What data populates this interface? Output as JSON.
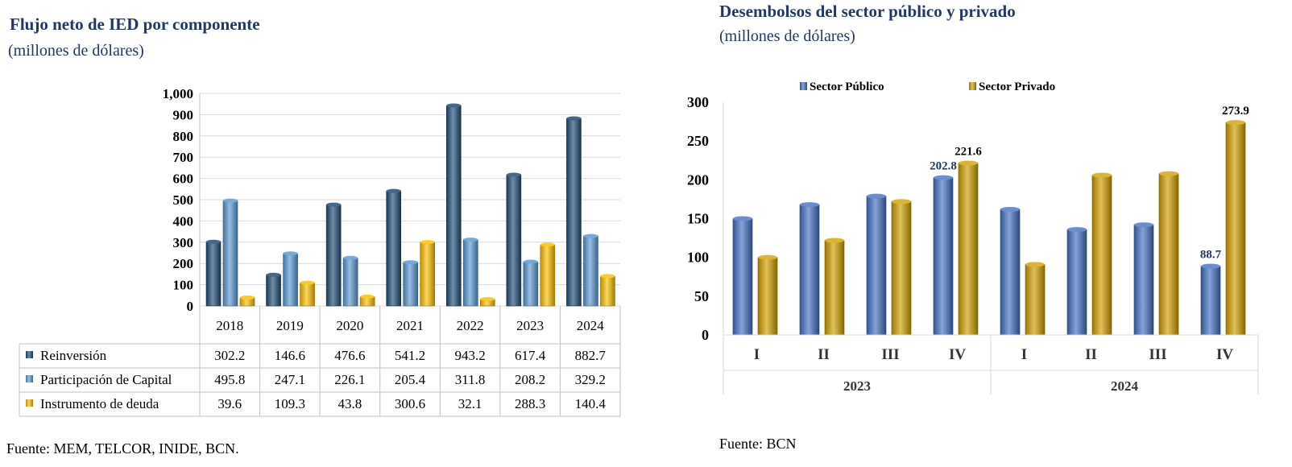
{
  "chart_data": [
    {
      "type": "bar",
      "title": "Flujo neto de IED por componente",
      "subtitle": "(millones de dólares)",
      "source": "Fuente: MEM, TELCOR, INIDE, BCN.",
      "categories": [
        "2018",
        "2019",
        "2020",
        "2021",
        "2022",
        "2023",
        "2024"
      ],
      "series": [
        {
          "name": "Reinversión",
          "color": "#1f4e79",
          "values": [
            302.2,
            146.6,
            476.6,
            541.2,
            943.2,
            617.4,
            882.7
          ]
        },
        {
          "name": "Participación de Capital",
          "color": "#5b9bd5",
          "values": [
            495.8,
            247.1,
            226.1,
            205.4,
            311.8,
            208.2,
            329.2
          ]
        },
        {
          "name": "Instrumento de deuda",
          "color": "#ffc000",
          "values": [
            39.6,
            109.3,
            43.8,
            300.6,
            32.1,
            288.3,
            140.4
          ]
        }
      ],
      "ylim": [
        0,
        1000
      ],
      "yticks": [
        "0",
        "100",
        "200",
        "300",
        "400",
        "500",
        "600",
        "700",
        "800",
        "900",
        "1,000"
      ],
      "grid": true,
      "legend": "data-table"
    },
    {
      "type": "bar",
      "title": "Desembolsos del sector público y privado",
      "subtitle": "(millones de dólares)",
      "source": "Fuente: BCN",
      "categories": [
        "I",
        "II",
        "III",
        "IV",
        "I",
        "II",
        "III",
        "IV"
      ],
      "groups": [
        {
          "label": "2023",
          "span": 4
        },
        {
          "label": "2024",
          "span": 4
        }
      ],
      "series": [
        {
          "name": "Sector Público",
          "color": "#4472c4",
          "values": [
            150,
            168,
            179,
            202.8,
            162,
            136,
            142,
            88.7
          ]
        },
        {
          "name": "Sector Privado",
          "color": "#d4a000",
          "values": [
            100,
            122,
            172,
            221.6,
            91,
            206,
            208,
            273.9
          ]
        }
      ],
      "data_labels": [
        {
          "series": 0,
          "index": 3,
          "text": "202.8"
        },
        {
          "series": 1,
          "index": 3,
          "text": "221.6"
        },
        {
          "series": 0,
          "index": 7,
          "text": "88.7"
        },
        {
          "series": 1,
          "index": 7,
          "text": "273.9"
        }
      ],
      "ylim": [
        0,
        300
      ],
      "yticks": [
        "0",
        "50",
        "100",
        "150",
        "200",
        "250",
        "300"
      ],
      "grid": false,
      "legend": "top"
    }
  ]
}
